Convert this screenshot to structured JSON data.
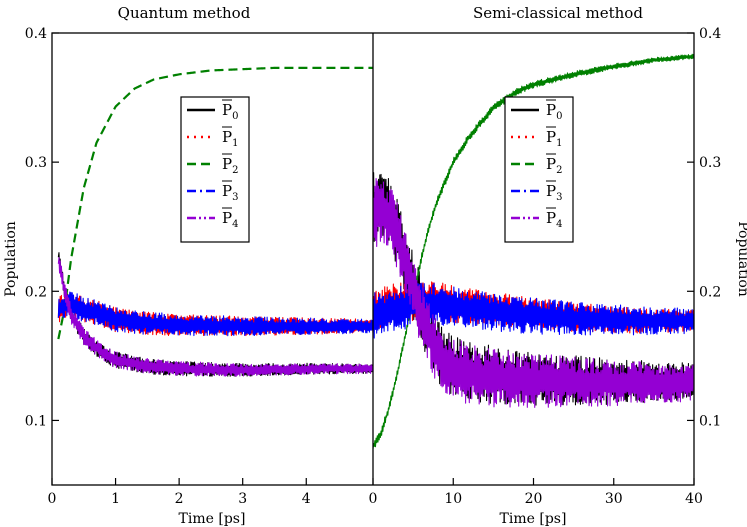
{
  "chart_data": [
    {
      "type": "line",
      "title": "Quantum method",
      "xlabel": "Time [ps]",
      "ylabel": "Population",
      "xlim": [
        0,
        5.05
      ],
      "ylim": [
        0.05,
        0.4
      ],
      "xticks": [
        0,
        1,
        2,
        3,
        4
      ],
      "xtick_labels": [
        "0",
        "1",
        "2",
        "3",
        "4"
      ],
      "yticks": [
        0.1,
        0.2,
        0.3,
        0.4
      ],
      "ytick_labels": [
        "0.1",
        "0.2",
        "0.3",
        "0.4"
      ],
      "legend_position": "upper-center",
      "series": [
        {
          "name": "P̄0",
          "symbol": "P",
          "sub": "0",
          "color": "#000000",
          "dash": "solid",
          "x": [
            0.1,
            0.15,
            0.2,
            0.3,
            0.5,
            0.8,
            1.0,
            1.5,
            2.0,
            3.0,
            4.0,
            5.05
          ],
          "y": [
            0.23,
            0.215,
            0.2,
            0.182,
            0.165,
            0.152,
            0.147,
            0.142,
            0.14,
            0.139,
            0.14,
            0.14
          ],
          "noise": 0.006
        },
        {
          "name": "P̄1",
          "symbol": "P",
          "sub": "1",
          "color": "#ff0000",
          "dash": "dotted",
          "x": [
            0.1,
            0.2,
            0.3,
            0.5,
            0.8,
            1.0,
            1.5,
            2.0,
            3.0,
            4.0,
            5.05
          ],
          "y": [
            0.185,
            0.19,
            0.19,
            0.186,
            0.182,
            0.178,
            0.175,
            0.174,
            0.173,
            0.173,
            0.173
          ],
          "noise": 0.009
        },
        {
          "name": "P̄2",
          "symbol": "P",
          "sub": "2",
          "color": "#008000",
          "dash": "dashed",
          "x": [
            0.1,
            0.2,
            0.3,
            0.5,
            0.7,
            1.0,
            1.3,
            1.6,
            2.0,
            2.5,
            3.0,
            3.5,
            4.0,
            5.05
          ],
          "y": [
            0.163,
            0.187,
            0.225,
            0.28,
            0.315,
            0.343,
            0.357,
            0.364,
            0.368,
            0.371,
            0.372,
            0.373,
            0.373,
            0.373
          ],
          "noise": 0
        },
        {
          "name": "P̄3",
          "symbol": "P",
          "sub": "3",
          "color": "#0000ff",
          "dash": "dashdot",
          "x": [
            0.1,
            0.2,
            0.3,
            0.5,
            0.8,
            1.0,
            1.5,
            2.0,
            3.0,
            4.0,
            5.05
          ],
          "y": [
            0.185,
            0.19,
            0.19,
            0.186,
            0.182,
            0.178,
            0.175,
            0.174,
            0.173,
            0.173,
            0.173
          ],
          "noise": 0.009
        },
        {
          "name": "P̄4",
          "symbol": "P",
          "sub": "4",
          "color": "#9400d3",
          "dash": "dashdotdot",
          "x": [
            0.1,
            0.15,
            0.2,
            0.3,
            0.5,
            0.8,
            1.0,
            1.5,
            2.0,
            3.0,
            4.0,
            5.05
          ],
          "y": [
            0.225,
            0.212,
            0.2,
            0.182,
            0.165,
            0.152,
            0.147,
            0.142,
            0.14,
            0.139,
            0.14,
            0.14
          ],
          "noise": 0.006
        }
      ]
    },
    {
      "type": "line",
      "title": "Semi-classical method",
      "xlabel": "Time [ps]",
      "ylabel": "Population",
      "xlim": [
        0,
        40
      ],
      "ylim": [
        0.05,
        0.4
      ],
      "xticks": [
        0,
        10,
        20,
        30,
        40
      ],
      "xtick_labels": [
        "0",
        "10",
        "20",
        "30",
        "40"
      ],
      "yticks": [
        0.1,
        0.2,
        0.3,
        0.4
      ],
      "ytick_labels": [
        "0.1",
        "0.2",
        "0.3",
        "0.4"
      ],
      "legend_position": "upper-center",
      "series": [
        {
          "name": "P̄0",
          "symbol": "P",
          "sub": "0",
          "color": "#000000",
          "dash": "solid",
          "x": [
            0,
            1,
            2,
            3,
            4,
            5,
            6,
            7,
            8,
            9,
            10,
            12,
            15,
            20,
            25,
            30,
            35,
            40
          ],
          "y": [
            0.265,
            0.265,
            0.26,
            0.245,
            0.225,
            0.205,
            0.185,
            0.168,
            0.155,
            0.147,
            0.142,
            0.138,
            0.135,
            0.132,
            0.131,
            0.13,
            0.13,
            0.13
          ],
          "noise": 0.024
        },
        {
          "name": "P̄1",
          "symbol": "P",
          "sub": "1",
          "color": "#ff0000",
          "dash": "dotted",
          "x": [
            0,
            2,
            4,
            6,
            8,
            10,
            15,
            20,
            25,
            30,
            35,
            40
          ],
          "y": [
            0.185,
            0.19,
            0.192,
            0.193,
            0.193,
            0.19,
            0.186,
            0.183,
            0.18,
            0.178,
            0.177,
            0.177
          ],
          "noise": 0.014
        },
        {
          "name": "P̄2",
          "symbol": "P",
          "sub": "2",
          "color": "#008000",
          "dash": "dashed",
          "x": [
            0,
            1,
            2,
            3,
            4,
            5,
            6,
            7,
            8,
            10,
            12,
            15,
            18,
            20,
            25,
            30,
            35,
            40
          ],
          "y": [
            0.08,
            0.09,
            0.11,
            0.135,
            0.165,
            0.195,
            0.225,
            0.25,
            0.27,
            0.3,
            0.32,
            0.342,
            0.355,
            0.36,
            0.368,
            0.374,
            0.379,
            0.382
          ],
          "noise": 0.003
        },
        {
          "name": "P̄3",
          "symbol": "P",
          "sub": "3",
          "color": "#0000ff",
          "dash": "dashdot",
          "x": [
            0,
            2,
            4,
            6,
            8,
            10,
            15,
            20,
            25,
            30,
            35,
            40
          ],
          "y": [
            0.18,
            0.185,
            0.188,
            0.19,
            0.19,
            0.188,
            0.184,
            0.181,
            0.179,
            0.178,
            0.177,
            0.177
          ],
          "noise": 0.016
        },
        {
          "name": "P̄4",
          "symbol": "P",
          "sub": "4",
          "color": "#9400d3",
          "dash": "dashdotdot",
          "x": [
            0,
            1,
            2,
            3,
            4,
            5,
            6,
            7,
            8,
            9,
            10,
            12,
            15,
            20,
            25,
            30,
            35,
            40
          ],
          "y": [
            0.26,
            0.262,
            0.258,
            0.243,
            0.223,
            0.203,
            0.183,
            0.166,
            0.153,
            0.145,
            0.14,
            0.136,
            0.133,
            0.131,
            0.13,
            0.129,
            0.129,
            0.129
          ],
          "noise": 0.024
        }
      ]
    }
  ]
}
